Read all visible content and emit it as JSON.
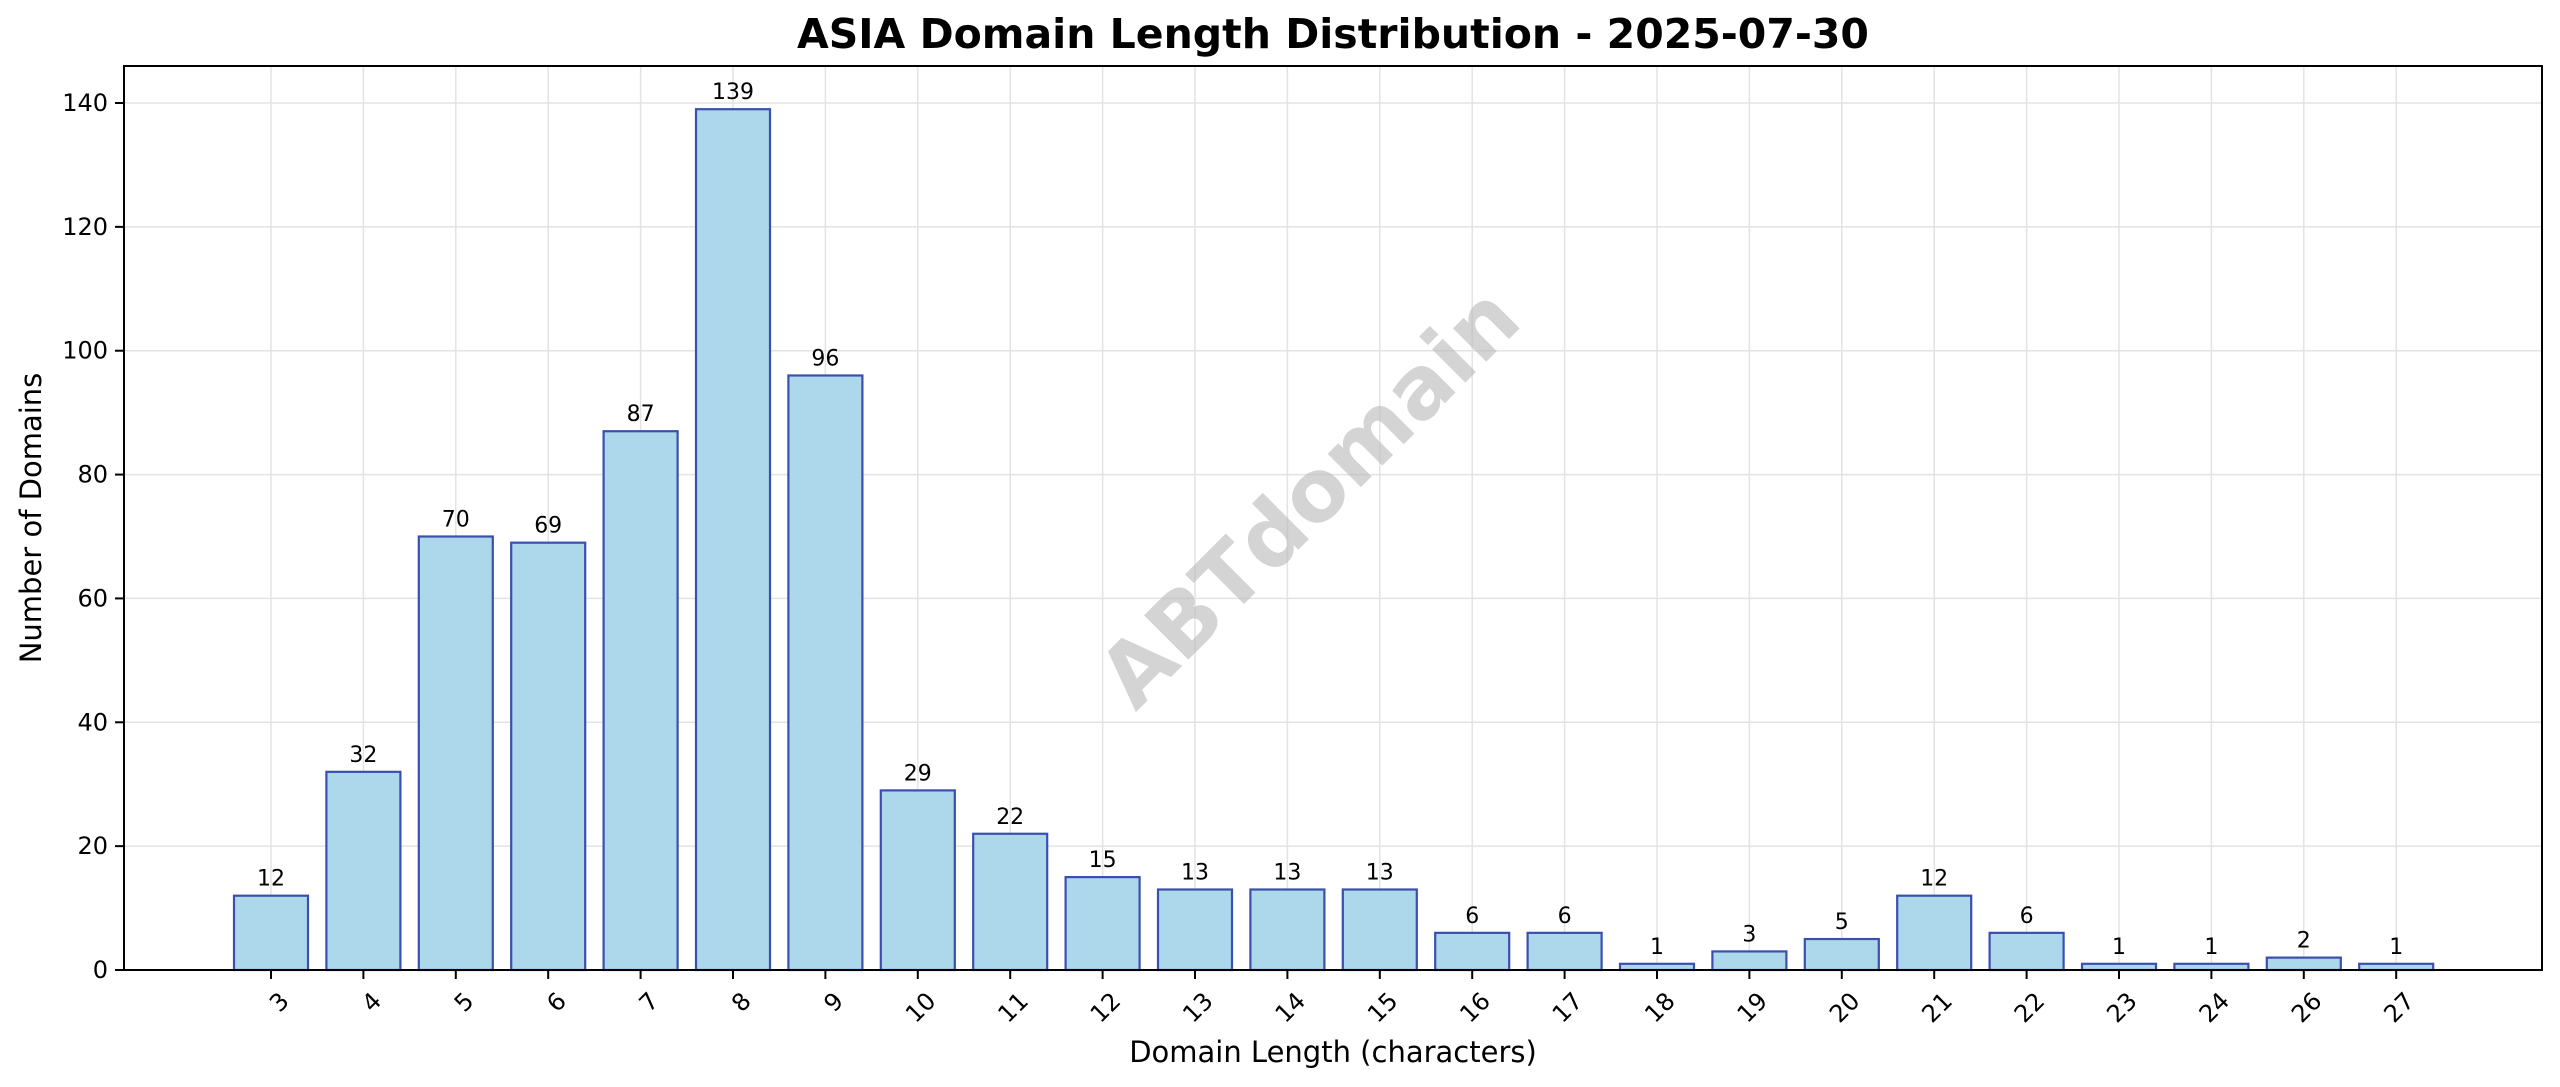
{
  "chart_data": {
    "type": "bar",
    "title": "ASIA Domain Length Distribution - 2025-07-30",
    "xlabel": "Domain Length (characters)",
    "ylabel": "Number of Domains",
    "categories": [
      "3",
      "4",
      "5",
      "6",
      "7",
      "8",
      "9",
      "10",
      "11",
      "12",
      "13",
      "14",
      "15",
      "16",
      "17",
      "18",
      "19",
      "20",
      "21",
      "22",
      "23",
      "24",
      "26",
      "27"
    ],
    "values": [
      12,
      32,
      70,
      69,
      87,
      139,
      96,
      29,
      22,
      15,
      13,
      13,
      13,
      6,
      6,
      1,
      3,
      5,
      12,
      6,
      1,
      1,
      2,
      1
    ],
    "ylim": [
      0,
      146
    ],
    "yticks": [
      0,
      20,
      40,
      60,
      80,
      100,
      120,
      140
    ],
    "grid": true,
    "watermark": "ABTdomain",
    "colors": {
      "bar_fill": "#add8ec",
      "bar_edge": "#3a4fae",
      "grid": "#e3e3e3"
    }
  }
}
